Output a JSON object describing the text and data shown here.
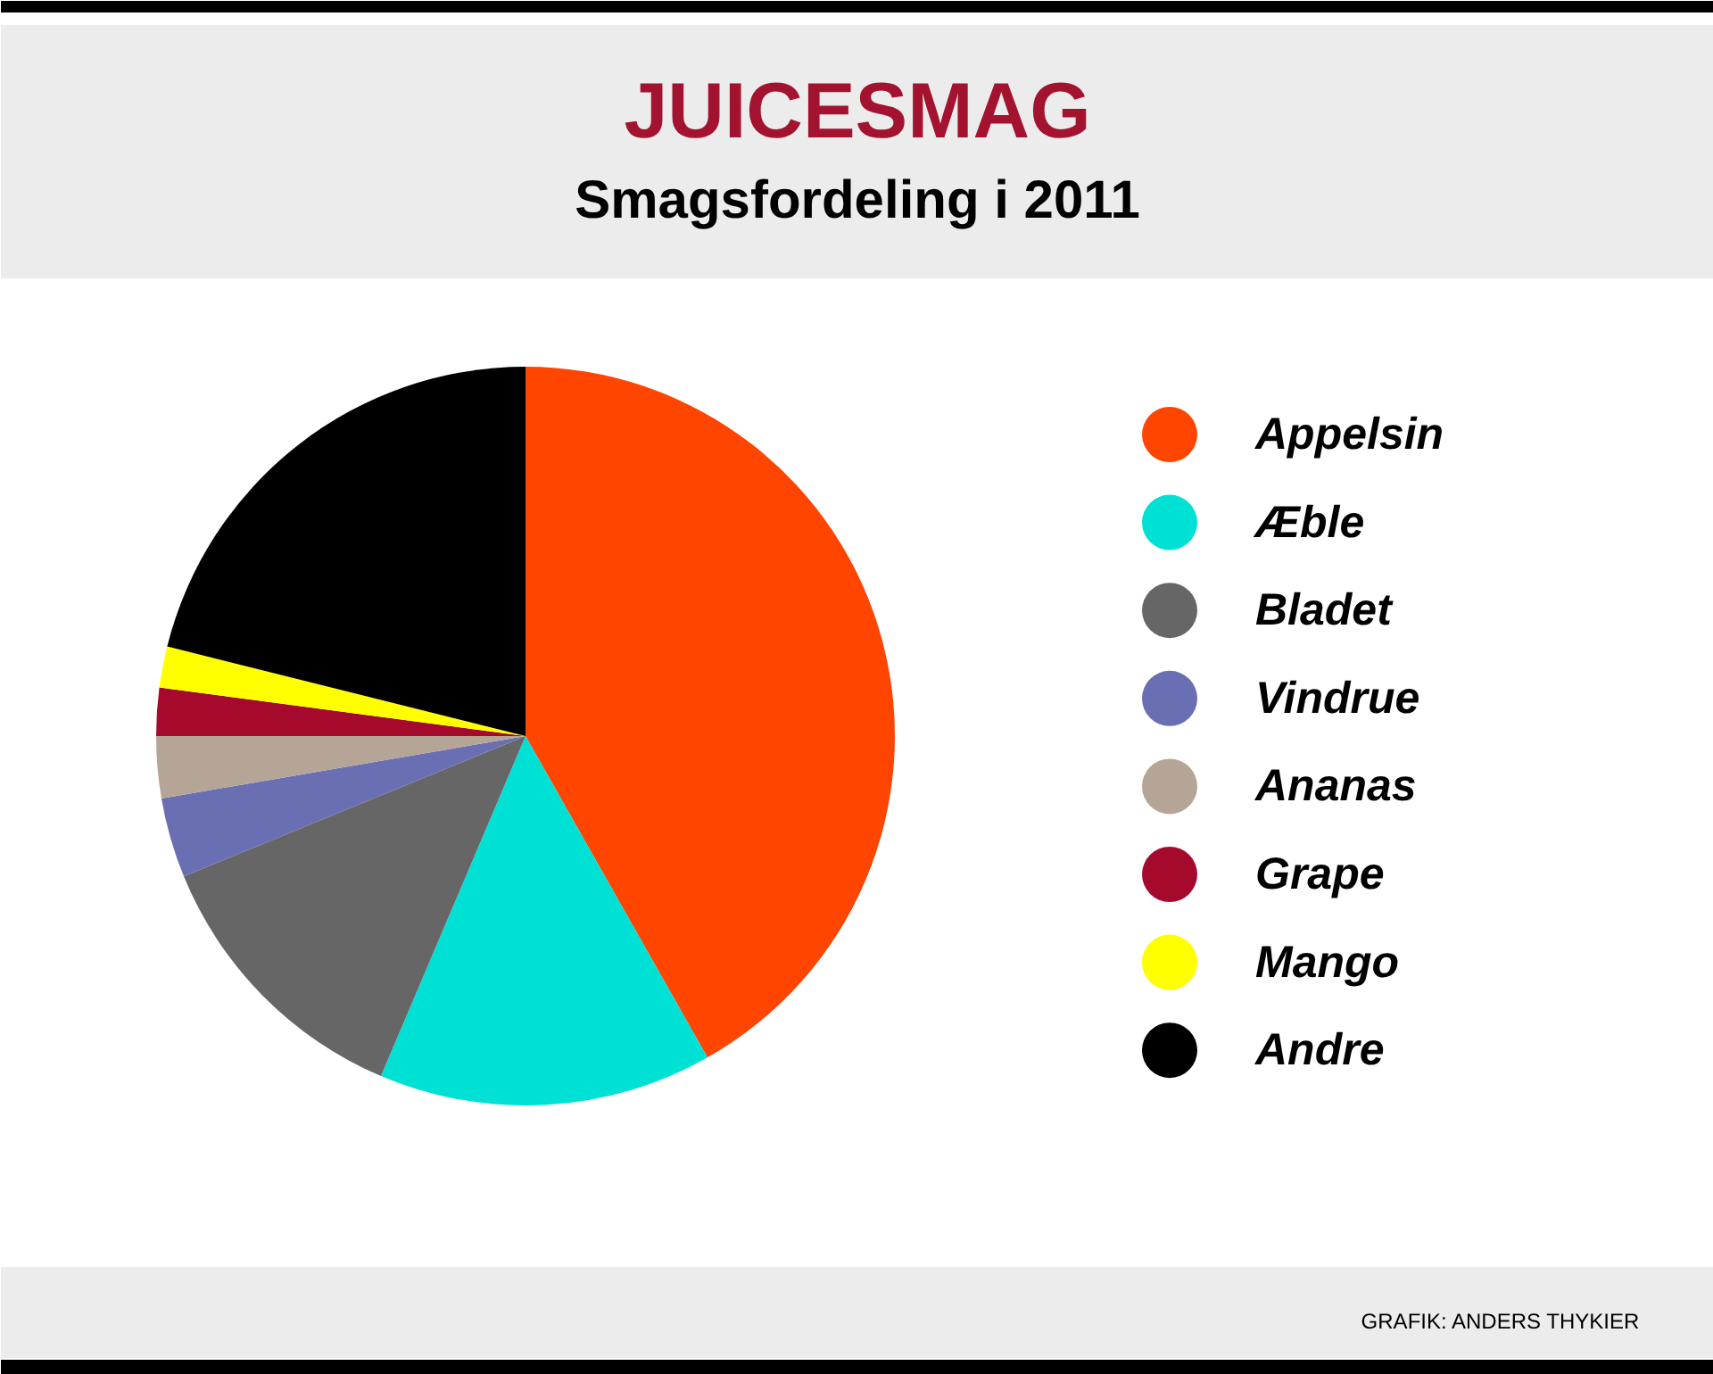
{
  "chart_data": {
    "type": "pie",
    "title": "JUICESMAG",
    "subtitle": "Smagsfordeling i 2011",
    "categories": [
      "Appelsin",
      "Æble",
      "Bladet",
      "Vindrue",
      "Ananas",
      "Grape",
      "Mango",
      "Andre"
    ],
    "values": [
      41.8,
      14.6,
      12.4,
      3.5,
      2.7,
      2.1,
      1.8,
      21.1
    ],
    "colors": [
      "#ff4500",
      "#00e1d6",
      "#666666",
      "#6a6fb3",
      "#b5a597",
      "#a50a2d",
      "#ffff00",
      "#000000"
    ],
    "legend": "right",
    "annotations": [
      "GRAFIK: ANDERS THYKIER"
    ]
  }
}
